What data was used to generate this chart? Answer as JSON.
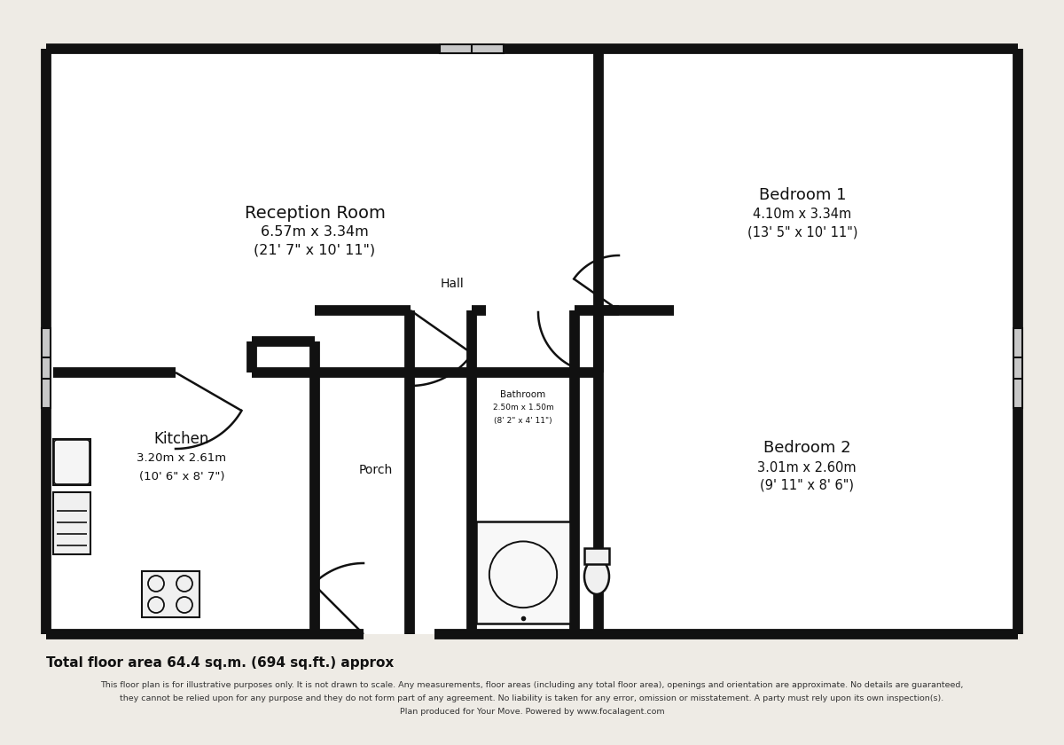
{
  "bg_color": "#eeebe5",
  "wall_color": "#111111",
  "floor_color": "#ffffff",
  "rooms": {
    "reception": {
      "label": "Reception Room",
      "dim1": "6.57m x 3.34m",
      "dim2": "(21' 7\" x 10' 11\")"
    },
    "bedroom1": {
      "label": "Bedroom 1",
      "dim1": "4.10m x 3.34m",
      "dim2": "(13' 5\" x 10' 11\")"
    },
    "bedroom2": {
      "label": "Bedroom 2",
      "dim1": "3.01m x 2.60m",
      "dim2": "(9' 11\" x 8' 6\")"
    },
    "kitchen": {
      "label": "Kitchen",
      "dim1": "3.20m x 2.61m",
      "dim2": "(10' 6\" x 8' 7\")"
    },
    "hall": {
      "label": "Hall"
    },
    "porch": {
      "label": "Porch"
    },
    "bathroom": {
      "label": "Bathroom",
      "dim1": "2.50m x 1.50m",
      "dim2": "(8' 2\" x 4' 11\")"
    }
  },
  "title_text": "Total floor area 64.4 sq.m. (694 sq.ft.) approx",
  "disclaimer_line1": "This floor plan is for illustrative purposes only. It is not drawn to scale. Any measurements, floor areas (including any total floor area), openings and orientation are approximate. No details are guaranteed,",
  "disclaimer_line2": "they cannot be relied upon for any purpose and they do not form part of any agreement. No liability is taken for any error, omission or misstatement. A party must rely upon its own inspection(s).",
  "disclaimer_line3": "Plan produced for Your Move. Powered by www.focalagent.com"
}
